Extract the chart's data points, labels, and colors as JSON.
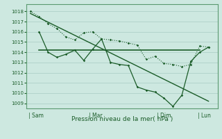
{
  "title": "Pression niveau de la mer( hPa )",
  "background_color": "#cde8e0",
  "grid_color": "#a8ccc4",
  "line_color": "#1a5c28",
  "ylim": [
    1008.5,
    1018.7
  ],
  "yticks": [
    1009,
    1010,
    1011,
    1012,
    1013,
    1014,
    1015,
    1016,
    1017,
    1018
  ],
  "x_day_labels": [
    "Sam",
    "Mar",
    "Dim",
    "Lun"
  ],
  "series1_dotted": {
    "x": [
      0.0,
      0.5,
      1.0,
      1.5,
      2.0,
      2.5,
      3.0,
      3.5,
      4.0,
      4.5,
      5.0,
      5.5,
      6.0,
      6.5,
      7.0,
      7.5,
      8.0,
      8.5,
      9.0,
      9.5,
      10.0
    ],
    "y": [
      1018.0,
      1017.5,
      1016.8,
      1016.3,
      1015.5,
      1015.2,
      1015.9,
      1016.0,
      1015.3,
      1015.2,
      1015.1,
      1014.9,
      1014.7,
      1013.3,
      1013.6,
      1012.9,
      1012.8,
      1012.6,
      1012.8,
      1014.6,
      1014.5
    ]
  },
  "series2_solid": {
    "x": [
      0.5,
      1.0,
      1.5,
      2.0,
      2.5,
      3.0,
      3.5,
      4.0,
      4.5,
      5.0,
      5.5,
      6.0,
      6.5,
      7.0,
      7.5,
      8.0,
      8.5,
      9.0,
      9.5,
      10.0
    ],
    "y": [
      1016.0,
      1014.0,
      1013.5,
      1013.8,
      1014.2,
      1013.2,
      1014.3,
      1015.3,
      1013.0,
      1012.8,
      1012.7,
      1010.6,
      1010.3,
      1010.1,
      1009.5,
      1008.7,
      1009.8,
      1013.1,
      1014.0,
      1014.5
    ]
  },
  "trend_line": {
    "x": [
      0.0,
      10.0
    ],
    "y": [
      1017.8,
      1009.2
    ]
  },
  "horizontal_line": {
    "x": [
      0.5,
      9.5
    ],
    "y": [
      1014.2,
      1014.2
    ]
  },
  "figsize": [
    3.2,
    2.0
  ],
  "dpi": 100
}
